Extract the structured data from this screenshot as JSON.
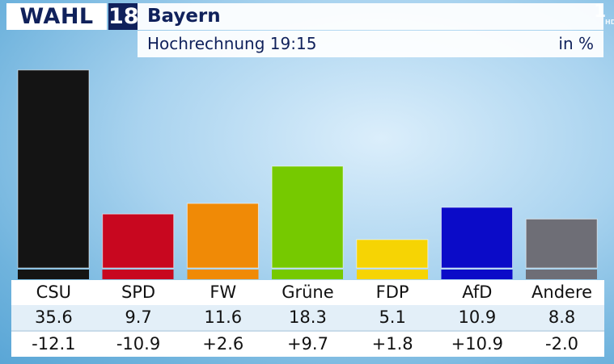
{
  "header": {
    "logo_word": "WAHL",
    "logo_year": "18",
    "region": "Bayern",
    "subtitle": "Hochrechnung 19:15",
    "unit": "in %"
  },
  "channel": {
    "logo": "1",
    "hd": "HD"
  },
  "colors": {
    "CSU": "#141414",
    "SPD": "#c8071f",
    "FW": "#f08a06",
    "Grüne": "#76c900",
    "FDP": "#f6d404",
    "AfD": "#0b0bc8",
    "Andere": "#6e6e76"
  },
  "chart_data": {
    "type": "bar",
    "title": "Bayern",
    "subtitle": "Hochrechnung 19:15",
    "categories": [
      "CSU",
      "SPD",
      "FW",
      "Grüne",
      "FDP",
      "AfD",
      "Andere"
    ],
    "values": [
      35.6,
      9.7,
      11.6,
      18.3,
      5.1,
      10.9,
      8.8
    ],
    "changes": [
      "-12.1",
      "-10.9",
      "+2.6",
      "+9.7",
      "+1.8",
      "+10.9",
      "-2.0"
    ],
    "ylim": [
      0,
      36
    ],
    "grid": false,
    "legend": "none"
  },
  "table": {
    "names": [
      "CSU",
      "SPD",
      "FW",
      "Grüne",
      "FDP",
      "AfD",
      "Andere"
    ],
    "values": [
      "35.6",
      "9.7",
      "11.6",
      "18.3",
      "5.1",
      "10.9",
      "8.8"
    ],
    "changes": [
      "-12.1",
      "-10.9",
      "+2.6",
      "+9.7",
      "+1.8",
      "+10.9",
      "-2.0"
    ]
  }
}
